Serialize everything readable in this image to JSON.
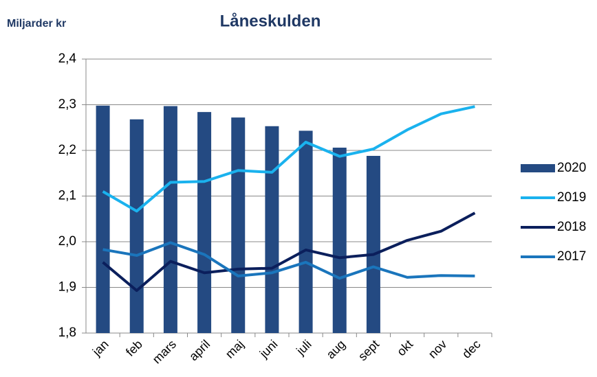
{
  "chart_data": {
    "type": "combo",
    "title": "Låneskulden",
    "y_label": "Miljarder kr",
    "categories": [
      "jan",
      "feb",
      "mars",
      "april",
      "maj",
      "juni",
      "juli",
      "aug",
      "sept",
      "okt",
      "nov",
      "dec"
    ],
    "series": [
      {
        "name": "2020",
        "type": "bar",
        "color": "#244a82",
        "values": [
          2.298,
          2.268,
          2.297,
          2.284,
          2.272,
          2.253,
          2.243,
          2.206,
          2.188,
          null,
          null,
          null
        ]
      },
      {
        "name": "2019",
        "type": "line",
        "color": "#1ab2ee",
        "values": [
          2.11,
          2.067,
          2.13,
          2.132,
          2.156,
          2.152,
          2.218,
          2.187,
          2.203,
          2.245,
          2.28,
          2.296
        ]
      },
      {
        "name": "2018",
        "type": "line",
        "color": "#0b1f5c",
        "values": [
          1.955,
          1.893,
          1.957,
          1.932,
          1.94,
          1.942,
          1.982,
          1.965,
          1.972,
          2.003,
          2.023,
          2.063
        ]
      },
      {
        "name": "2017",
        "type": "line",
        "color": "#1a75bc",
        "values": [
          1.983,
          1.97,
          1.998,
          1.972,
          1.925,
          1.932,
          1.955,
          1.92,
          1.945,
          1.922,
          1.926,
          1.925
        ]
      }
    ],
    "ylim": [
      1.8,
      2.4
    ],
    "yticks": [
      {
        "value": 1.8,
        "label": "1,8"
      },
      {
        "value": 1.9,
        "label": "1,9"
      },
      {
        "value": 2.0,
        "label": "2,0"
      },
      {
        "value": 2.1,
        "label": "2,1"
      },
      {
        "value": 2.2,
        "label": "2,2"
      },
      {
        "value": 2.3,
        "label": "2,3"
      },
      {
        "value": 2.4,
        "label": "2,4"
      }
    ],
    "grid": true,
    "legend": "right"
  }
}
